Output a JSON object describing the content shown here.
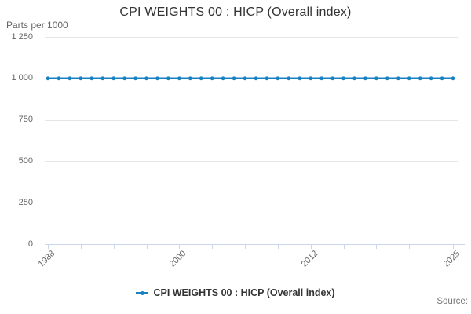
{
  "title": "CPI WEIGHTS 00 : HICP (Overall index)",
  "y_axis_title": "Parts per 1000",
  "legend": {
    "label": "CPI WEIGHTS 00 : HICP (Overall index)"
  },
  "credits": {
    "label": "Source:"
  },
  "palette": {
    "line": "#1781c2",
    "grid": "#e6e6e6",
    "axis": "#ccd6eb",
    "label": "#666666",
    "title": "#333333"
  },
  "chart_data": {
    "type": "line",
    "title": "CPI WEIGHTS 00 : HICP (Overall index)",
    "xlabel": "",
    "ylabel": "Parts per 1000",
    "x": [
      1988,
      1989,
      1990,
      1991,
      1992,
      1993,
      1994,
      1995,
      1996,
      1997,
      1998,
      1999,
      2000,
      2001,
      2002,
      2003,
      2004,
      2005,
      2006,
      2007,
      2008,
      2009,
      2010,
      2011,
      2012,
      2013,
      2014,
      2015,
      2016,
      2017,
      2018,
      2019,
      2020,
      2021,
      2022,
      2023,
      2024,
      2025
    ],
    "series": [
      {
        "name": "CPI WEIGHTS 00 : HICP (Overall index)",
        "values": [
          1000,
          1000,
          1000,
          1000,
          1000,
          1000,
          1000,
          1000,
          1000,
          1000,
          1000,
          1000,
          1000,
          1000,
          1000,
          1000,
          1000,
          1000,
          1000,
          1000,
          1000,
          1000,
          1000,
          1000,
          1000,
          1000,
          1000,
          1000,
          1000,
          1000,
          1000,
          1000,
          1000,
          1000,
          1000,
          1000,
          1000,
          1000
        ]
      }
    ],
    "ylim": [
      0,
      1250
    ],
    "y_ticks": [
      0,
      250,
      500,
      750,
      1000,
      1250
    ],
    "y_tick_labels": [
      "0",
      "250",
      "500",
      "750",
      "1 000",
      "1 250"
    ],
    "x_tick_years": [
      1988,
      1991,
      1994,
      1997,
      2000,
      2003,
      2006,
      2009,
      2012,
      2015,
      2018,
      2021,
      2025
    ],
    "x_labeled_years": [
      1988,
      2000,
      2012,
      2025
    ],
    "grid": "horizontal",
    "legend_position": "bottom",
    "marker": "circle"
  }
}
